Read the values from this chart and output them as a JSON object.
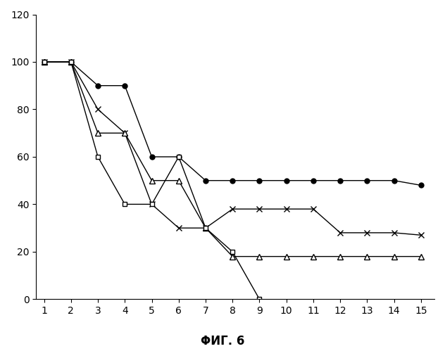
{
  "series": [
    {
      "name": "filled_circles",
      "x": [
        1,
        2,
        3,
        4,
        5,
        6,
        7,
        8,
        9,
        10,
        11,
        12,
        13,
        14,
        15
      ],
      "y": [
        100,
        100,
        90,
        90,
        60,
        60,
        50,
        50,
        50,
        50,
        50,
        50,
        50,
        50,
        48
      ],
      "marker": "o",
      "markerfacecolor": "black",
      "markeredgecolor": "black",
      "color": "black",
      "markersize": 5
    },
    {
      "name": "x_crosses",
      "x": [
        1,
        2,
        3,
        4,
        5,
        6,
        7,
        8,
        9,
        10,
        11,
        12,
        13,
        14,
        15
      ],
      "y": [
        100,
        100,
        80,
        70,
        40,
        30,
        30,
        38,
        38,
        38,
        38,
        28,
        28,
        28,
        27
      ],
      "marker": "x",
      "markerfacecolor": "none",
      "markeredgecolor": "black",
      "color": "black",
      "markersize": 6
    },
    {
      "name": "open_triangles",
      "x": [
        1,
        2,
        3,
        4,
        5,
        6,
        7,
        8,
        9,
        10,
        11,
        12,
        13,
        14,
        15
      ],
      "y": [
        100,
        100,
        70,
        70,
        50,
        50,
        30,
        18,
        18,
        18,
        18,
        18,
        18,
        18,
        18
      ],
      "marker": "^",
      "markerfacecolor": "white",
      "markeredgecolor": "black",
      "color": "black",
      "markersize": 6
    },
    {
      "name": "squares_to_zero",
      "x": [
        1,
        2,
        3,
        4,
        5,
        6,
        7,
        8,
        9
      ],
      "y": [
        100,
        100,
        60,
        40,
        40,
        60,
        30,
        20,
        0
      ],
      "marker": "s",
      "markerfacecolor": "white",
      "markeredgecolor": "black",
      "color": "black",
      "markersize": 5
    }
  ],
  "xlim": [
    0.7,
    15.5
  ],
  "ylim": [
    0,
    120
  ],
  "xticks": [
    1,
    2,
    3,
    4,
    5,
    6,
    7,
    8,
    9,
    10,
    11,
    12,
    13,
    14,
    15
  ],
  "yticks": [
    0,
    20,
    40,
    60,
    80,
    100,
    120
  ],
  "caption": "ΦИГ. 6",
  "background_color": "#ffffff",
  "linewidth": 1.0
}
